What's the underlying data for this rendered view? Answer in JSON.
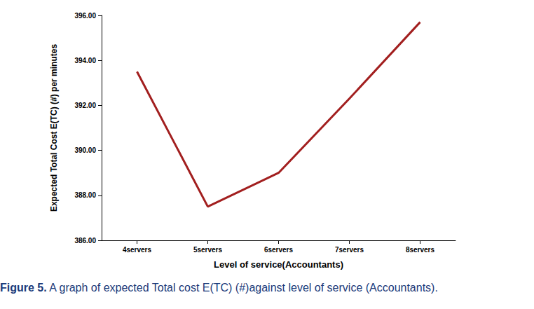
{
  "chart_data": {
    "type": "line",
    "y_label": "Expected Total Cost E(TC) (#) per minutes",
    "x_label": "Level of service(Accountants)",
    "caption_label": "Figure 5.",
    "caption": " A graph of expected Total cost E(TC) (#)against level of service (Accountants).",
    "categories": [
      "4servers",
      "5servers",
      "6servers",
      "7servers",
      "8servers"
    ],
    "values": [
      393.5,
      387.5,
      389.0,
      392.3,
      395.7
    ],
    "color": "#a21f1f",
    "ylim": [
      386,
      396
    ],
    "yticks": [
      {
        "value": 386,
        "label": "386.00"
      },
      {
        "value": 388,
        "label": "388.00"
      },
      {
        "value": 390,
        "label": "390.00"
      },
      {
        "value": 392,
        "label": "392.00"
      },
      {
        "value": 394,
        "label": "394.00"
      },
      {
        "value": 396,
        "label": "396.00"
      }
    ],
    "grid": false
  }
}
